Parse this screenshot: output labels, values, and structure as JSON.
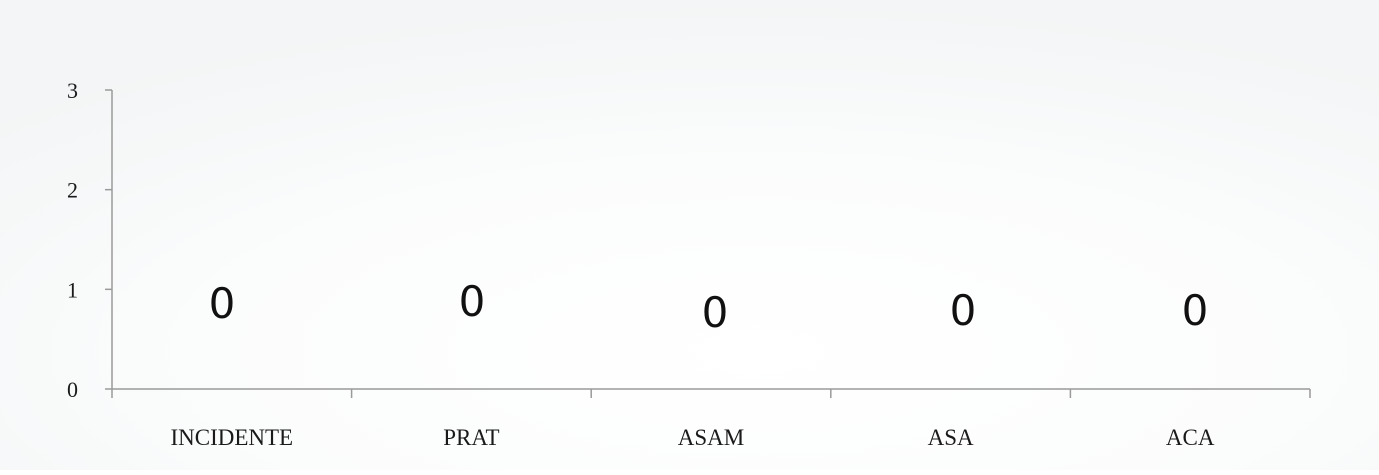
{
  "chart_data": {
    "type": "bar",
    "categories": [
      "INCIDENTE",
      "PRAT",
      "ASAM",
      "ASA",
      "ACA"
    ],
    "values": [
      0,
      0,
      0,
      0,
      0
    ],
    "data_labels": [
      "0",
      "0",
      "0",
      "0",
      "0"
    ],
    "y_ticks": [
      "0",
      "1",
      "2",
      "3"
    ],
    "ylim": [
      0,
      3
    ],
    "grid": false,
    "legend": "none",
    "colors": {
      "background": "#ffffff",
      "background_glow": "#f4f6f7",
      "axis": "#9a9a9a",
      "text": "#1a1a1a"
    }
  }
}
